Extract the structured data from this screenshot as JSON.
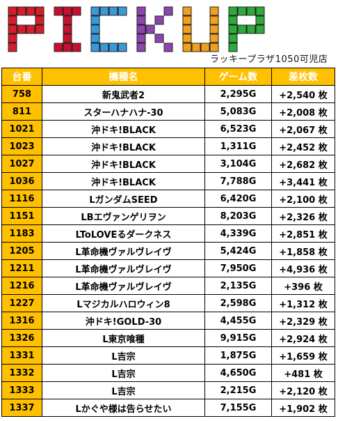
{
  "banner": {
    "letters": [
      {
        "char": "P",
        "color": "#d81c2c"
      },
      {
        "char": "I",
        "color": "#c8102e"
      },
      {
        "char": "C",
        "color": "#3a9ad9"
      },
      {
        "char": "K",
        "color": "#8e44ad"
      },
      {
        "char": "U",
        "color": "#f0a01c"
      },
      {
        "char": "P",
        "color": "#2eaa3c"
      }
    ],
    "store_name": "ラッキープラザ1050可児店"
  },
  "table": {
    "headers": {
      "machine_no": "台番",
      "machine_name": "機種名",
      "games": "ゲーム数",
      "diff": "差枚数"
    },
    "rows": [
      {
        "no": "758",
        "name": "新鬼武者2",
        "games": "2,295G",
        "diff": "+2,540 枚"
      },
      {
        "no": "811",
        "name": "スターハナハナ-30",
        "games": "5,083G",
        "diff": "+2,008 枚"
      },
      {
        "no": "1021",
        "name": "沖ドキ!BLACK",
        "games": "6,523G",
        "diff": "+2,067 枚"
      },
      {
        "no": "1023",
        "name": "沖ドキ!BLACK",
        "games": "1,311G",
        "diff": "+2,452 枚"
      },
      {
        "no": "1027",
        "name": "沖ドキ!BLACK",
        "games": "3,104G",
        "diff": "+2,682 枚"
      },
      {
        "no": "1036",
        "name": "沖ドキ!BLACK",
        "games": "7,788G",
        "diff": "+3,441 枚"
      },
      {
        "no": "1116",
        "name": "LガンダムSEED",
        "games": "6,420G",
        "diff": "+2,100 枚"
      },
      {
        "no": "1151",
        "name": "LBエヴァンゲリヲン",
        "games": "8,203G",
        "diff": "+2,326 枚"
      },
      {
        "no": "1183",
        "name": "LToLOVEるダークネス",
        "games": "4,339G",
        "diff": "+2,851 枚"
      },
      {
        "no": "1205",
        "name": "L革命機ヴァルヴレイヴ",
        "games": "5,424G",
        "diff": "+1,858 枚"
      },
      {
        "no": "1211",
        "name": "L革命機ヴァルヴレイヴ",
        "games": "7,950G",
        "diff": "+4,936 枚"
      },
      {
        "no": "1216",
        "name": "L革命機ヴァルヴレイヴ",
        "games": "2,135G",
        "diff": "+396 枚"
      },
      {
        "no": "1227",
        "name": "Lマジカルハロウィン8",
        "games": "2,598G",
        "diff": "+1,312 枚"
      },
      {
        "no": "1316",
        "name": "沖ドキ!GOLD-30",
        "games": "4,455G",
        "diff": "+2,329 枚"
      },
      {
        "no": "1326",
        "name": "L東京喰種",
        "games": "9,915G",
        "diff": "+2,924 枚"
      },
      {
        "no": "1331",
        "name": "L吉宗",
        "games": "1,875G",
        "diff": "+1,659 枚"
      },
      {
        "no": "1332",
        "name": "L吉宗",
        "games": "4,650G",
        "diff": "+481 枚"
      },
      {
        "no": "1333",
        "name": "L吉宗",
        "games": "2,215G",
        "diff": "+2,120 枚"
      },
      {
        "no": "1337",
        "name": "Lかぐや様は告らせたい",
        "games": "7,155G",
        "diff": "+1,902 枚"
      }
    ]
  }
}
